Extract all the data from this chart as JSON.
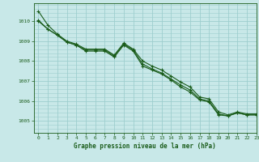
{
  "title": "Graphe pression niveau de la mer (hPa)",
  "bg_color": "#c8e8e8",
  "grid_color": "#9ecece",
  "line_color": "#1a5c1a",
  "xlim": [
    -0.5,
    23
  ],
  "ylim": [
    1004.4,
    1010.9
  ],
  "yticks": [
    1005,
    1006,
    1007,
    1008,
    1009,
    1010
  ],
  "xticks": [
    0,
    1,
    2,
    3,
    4,
    5,
    6,
    7,
    8,
    9,
    10,
    11,
    12,
    13,
    14,
    15,
    16,
    17,
    18,
    19,
    20,
    21,
    22,
    23
  ],
  "series1": [
    1010.5,
    1009.8,
    1009.35,
    1009.0,
    1008.85,
    1008.6,
    1008.6,
    1008.6,
    1008.3,
    1008.9,
    1008.6,
    1008.0,
    1007.75,
    1007.55,
    1007.25,
    1006.95,
    1006.7,
    1006.2,
    1006.1,
    1005.45,
    1005.3,
    1005.45,
    1005.35,
    1005.35
  ],
  "series2": [
    1010.05,
    1009.6,
    1009.3,
    1008.95,
    1008.8,
    1008.55,
    1008.55,
    1008.55,
    1008.25,
    1008.85,
    1008.55,
    1007.85,
    1007.6,
    1007.4,
    1007.1,
    1006.8,
    1006.55,
    1006.1,
    1006.0,
    1005.35,
    1005.25,
    1005.4,
    1005.3,
    1005.3
  ],
  "series3": [
    1010.0,
    1009.6,
    1009.3,
    1008.95,
    1008.8,
    1008.5,
    1008.5,
    1008.5,
    1008.2,
    1008.8,
    1008.5,
    1007.75,
    1007.55,
    1007.35,
    1007.05,
    1006.7,
    1006.45,
    1006.05,
    1005.95,
    1005.3,
    1005.25,
    1005.4,
    1005.3,
    1005.3
  ]
}
